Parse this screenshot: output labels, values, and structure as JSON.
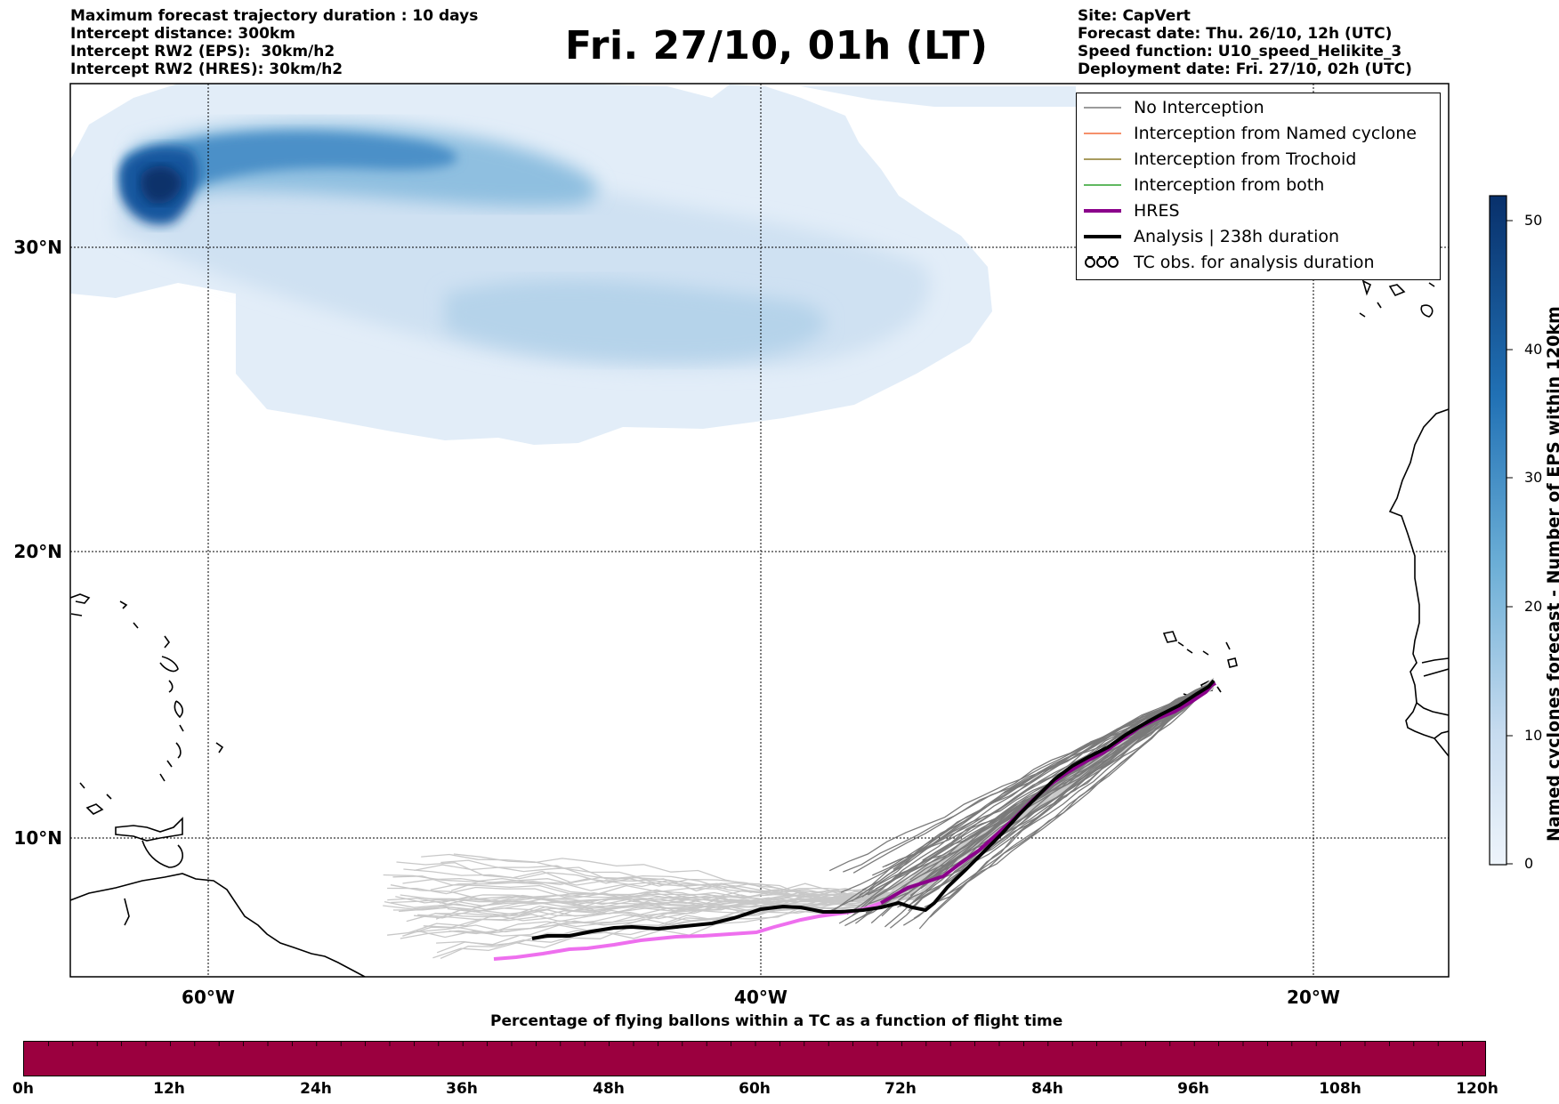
{
  "header_left": [
    "Maximum forecast trajectory duration : 10 days",
    "Intercept distance: 300km",
    "Intercept RW2 (EPS):  30km/h2",
    "Intercept RW2 (HRES): 30km/h2"
  ],
  "title": "Fri. 27/10, 01h (LT)",
  "header_right": [
    "Site: CapVert",
    "Forecast date: Thu. 26/10, 12h (UTC)",
    "Speed function: U10_speed_Helikite_3",
    "Deployment date: Fri. 27/10, 02h (UTC)"
  ],
  "map": {
    "lat_ticks": [
      "30°N",
      "20°N",
      "10°N"
    ],
    "lon_ticks": [
      "60°W",
      "40°W",
      "20°W"
    ],
    "colors": {
      "no_interception": "#7a7a7a",
      "named_cyclone": "#f26b3a",
      "trochoid": "#8b7a2a",
      "both": "#2ca02c",
      "hres": "#8b008b",
      "analysis": "#000000",
      "light_trajectories": "#c8c8c8",
      "hres_light": "#ee6fee"
    }
  },
  "legend": [
    {
      "key": "no_interception",
      "label": "No Interception"
    },
    {
      "key": "named_cyclone",
      "label": "Interception from Named cyclone"
    },
    {
      "key": "trochoid",
      "label": "Interception from Trochoid"
    },
    {
      "key": "both",
      "label": "Interception from both"
    },
    {
      "key": "hres",
      "label": "HRES"
    },
    {
      "key": "analysis",
      "label": "Analysis | 238h duration"
    },
    {
      "key": "tc_obs",
      "label": "TC obs. for analysis duration"
    }
  ],
  "colorbar": {
    "title": "Named cyclones forecast - Number of EPS within 120km",
    "ticks": [
      "50",
      "40",
      "30",
      "20",
      "10",
      "0"
    ],
    "range": [
      0,
      52
    ]
  },
  "bottom": {
    "title": "Percentage of flying ballons within a TC as a function of flight time",
    "bar_color": "#9b003f",
    "ticks": [
      "0h",
      "12h",
      "24h",
      "36h",
      "48h",
      "60h",
      "72h",
      "84h",
      "96h",
      "108h",
      "120h"
    ]
  }
}
